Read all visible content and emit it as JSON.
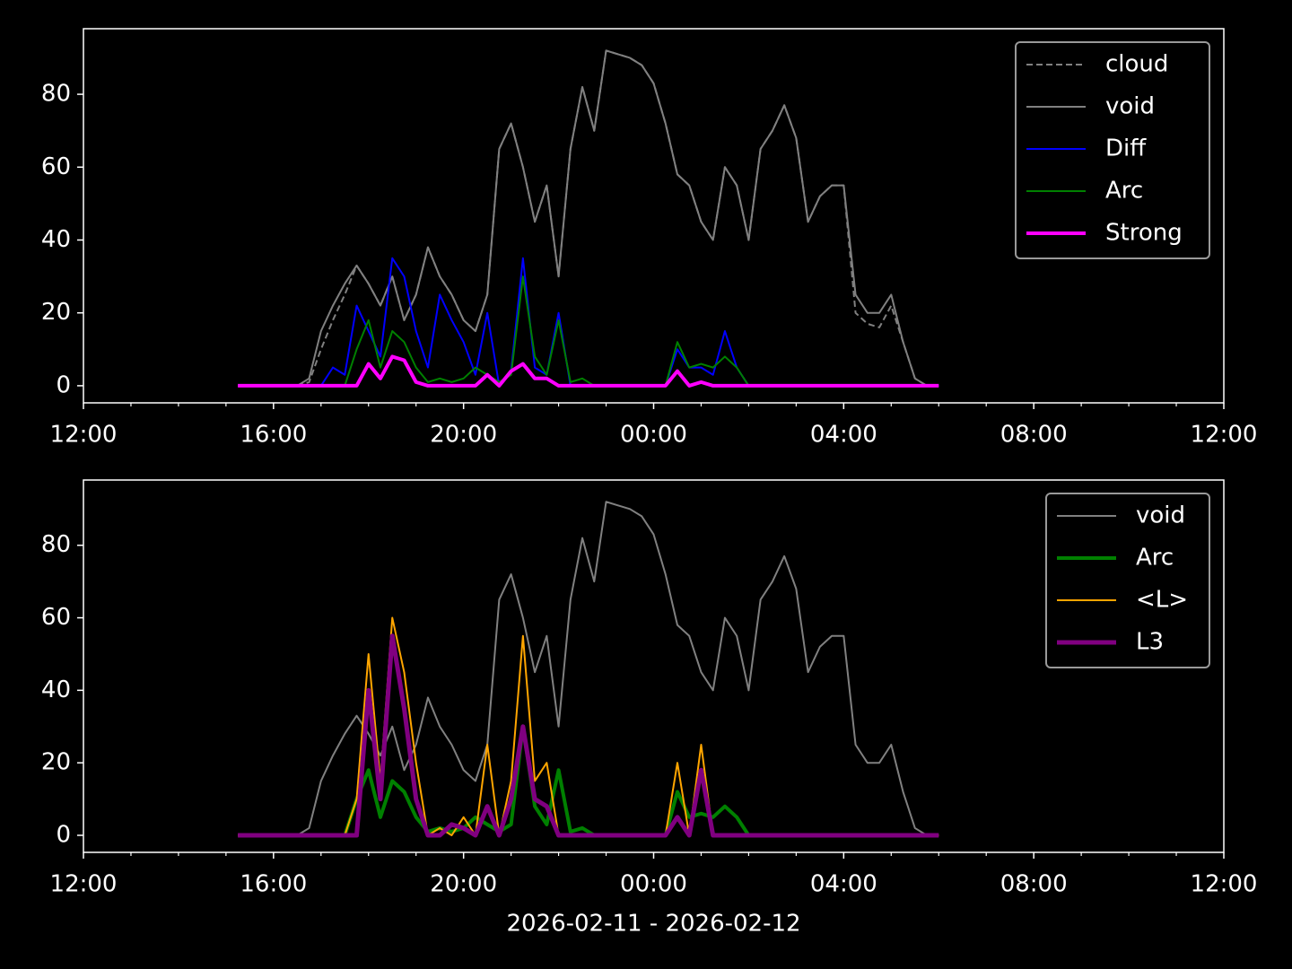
{
  "chart_data": [
    {
      "type": "line",
      "x": [
        15.25,
        15.5,
        15.75,
        16,
        16.25,
        16.5,
        16.75,
        17,
        17.25,
        17.5,
        17.75,
        18,
        18.25,
        18.5,
        18.75,
        19,
        19.25,
        19.5,
        19.75,
        20,
        20.25,
        20.5,
        20.75,
        21,
        21.25,
        21.5,
        21.75,
        22,
        22.25,
        22.5,
        22.75,
        23,
        23.25,
        23.5,
        23.75,
        24,
        24.25,
        24.5,
        24.75,
        25,
        25.25,
        25.5,
        25.75,
        26,
        26.25,
        26.5,
        26.75,
        27,
        27.25,
        27.5,
        27.75,
        28,
        28.25,
        28.5,
        28.75,
        29,
        29.25,
        29.5,
        29.75,
        30
      ],
      "xlim": [
        12,
        36
      ],
      "xticks": [
        {
          "value": 12,
          "label": "12:00"
        },
        {
          "value": 16,
          "label": "16:00"
        },
        {
          "value": 20,
          "label": "20:00"
        },
        {
          "value": 24,
          "label": "00:00"
        },
        {
          "value": 28,
          "label": "04:00"
        },
        {
          "value": 32,
          "label": "08:00"
        },
        {
          "value": 36,
          "label": "12:00"
        }
      ],
      "xminorticks": [
        13,
        14,
        15,
        17,
        18,
        19,
        21,
        22,
        23,
        25,
        26,
        27,
        29,
        30,
        31,
        33,
        34,
        35
      ],
      "ylim": [
        -4.7,
        98
      ],
      "yticks": [
        0,
        20,
        40,
        60,
        80
      ],
      "legend": "upper right",
      "series": [
        {
          "name": "cloud",
          "color": "#808080",
          "linestyle": "dashed",
          "linewidth": 2,
          "values": [
            0,
            0,
            0,
            0,
            0,
            0,
            1,
            10,
            18,
            25,
            33,
            28,
            22,
            30,
            18,
            25,
            38,
            30,
            25,
            18,
            15,
            25,
            65,
            72,
            60,
            45,
            55,
            30,
            65,
            82,
            70,
            92,
            91,
            90,
            88,
            83,
            72,
            58,
            55,
            45,
            40,
            60,
            55,
            40,
            65,
            70,
            77,
            68,
            45,
            52,
            55,
            55,
            20,
            17,
            16,
            22,
            12,
            2,
            0,
            0
          ]
        },
        {
          "name": "void",
          "color": "#808080",
          "linestyle": "solid",
          "linewidth": 2,
          "values": [
            0,
            0,
            0,
            0,
            0,
            0,
            2,
            15,
            22,
            28,
            33,
            28,
            22,
            30,
            18,
            25,
            38,
            30,
            25,
            18,
            15,
            25,
            65,
            72,
            60,
            45,
            55,
            30,
            65,
            82,
            70,
            92,
            91,
            90,
            88,
            83,
            72,
            58,
            55,
            45,
            40,
            60,
            55,
            40,
            65,
            70,
            77,
            68,
            45,
            52,
            55,
            55,
            25,
            20,
            20,
            25,
            12,
            2,
            0,
            0
          ]
        },
        {
          "name": "Diff",
          "color": "#0000ff",
          "linestyle": "solid",
          "linewidth": 2,
          "values": [
            0,
            0,
            0,
            0,
            0,
            0,
            0,
            0,
            5,
            3,
            22,
            15,
            8,
            35,
            30,
            15,
            5,
            25,
            18,
            12,
            3,
            20,
            0,
            4,
            35,
            5,
            3,
            20,
            0,
            0,
            0,
            0,
            0,
            0,
            0,
            0,
            0,
            10,
            5,
            5,
            3,
            15,
            5,
            0,
            0,
            0,
            0,
            0,
            0,
            0,
            0,
            0,
            0,
            0,
            0,
            0,
            0,
            0,
            0,
            0
          ]
        },
        {
          "name": "Arc",
          "color": "#008000",
          "linestyle": "solid",
          "linewidth": 2,
          "values": [
            0,
            0,
            0,
            0,
            0,
            0,
            0,
            0,
            0,
            0,
            10,
            18,
            5,
            15,
            12,
            5,
            1,
            2,
            1,
            2,
            5,
            3,
            1,
            3,
            30,
            8,
            3,
            18,
            1,
            2,
            0,
            0,
            0,
            0,
            0,
            0,
            0,
            12,
            5,
            6,
            5,
            8,
            5,
            0,
            0,
            0,
            0,
            0,
            0,
            0,
            0,
            0,
            0,
            0,
            0,
            0,
            0,
            0,
            0,
            0
          ]
        },
        {
          "name": "Strong",
          "color": "#ff00ff",
          "linestyle": "solid",
          "linewidth": 4,
          "values": [
            0,
            0,
            0,
            0,
            0,
            0,
            0,
            0,
            0,
            0,
            0,
            6,
            2,
            8,
            7,
            1,
            0,
            0,
            0,
            0,
            0,
            3,
            0,
            4,
            6,
            2,
            2,
            0,
            0,
            0,
            0,
            0,
            0,
            0,
            0,
            0,
            0,
            4,
            0,
            1,
            0,
            0,
            0,
            0,
            0,
            0,
            0,
            0,
            0,
            0,
            0,
            0,
            0,
            0,
            0,
            0,
            0,
            0,
            0,
            0
          ]
        }
      ]
    },
    {
      "type": "line",
      "x": [
        15.25,
        15.5,
        15.75,
        16,
        16.25,
        16.5,
        16.75,
        17,
        17.25,
        17.5,
        17.75,
        18,
        18.25,
        18.5,
        18.75,
        19,
        19.25,
        19.5,
        19.75,
        20,
        20.25,
        20.5,
        20.75,
        21,
        21.25,
        21.5,
        21.75,
        22,
        22.25,
        22.5,
        22.75,
        23,
        23.25,
        23.5,
        23.75,
        24,
        24.25,
        24.5,
        24.75,
        25,
        25.25,
        25.5,
        25.75,
        26,
        26.25,
        26.5,
        26.75,
        27,
        27.25,
        27.5,
        27.75,
        28,
        28.25,
        28.5,
        28.75,
        29,
        29.25,
        29.5,
        29.75,
        30
      ],
      "xlim": [
        12,
        36
      ],
      "xticks": [
        {
          "value": 12,
          "label": "12:00"
        },
        {
          "value": 16,
          "label": "16:00"
        },
        {
          "value": 20,
          "label": "20:00"
        },
        {
          "value": 24,
          "label": "00:00"
        },
        {
          "value": 28,
          "label": "04:00"
        },
        {
          "value": 32,
          "label": "08:00"
        },
        {
          "value": 36,
          "label": "12:00"
        }
      ],
      "xminorticks": [
        13,
        14,
        15,
        17,
        18,
        19,
        21,
        22,
        23,
        25,
        26,
        27,
        29,
        30,
        31,
        33,
        34,
        35
      ],
      "xlabel": "2026-02-11 - 2026-02-12",
      "ylim": [
        -4.7,
        98
      ],
      "yticks": [
        0,
        20,
        40,
        60,
        80
      ],
      "legend": "upper right",
      "series": [
        {
          "name": "void",
          "color": "#808080",
          "linestyle": "solid",
          "linewidth": 2,
          "values": [
            0,
            0,
            0,
            0,
            0,
            0,
            2,
            15,
            22,
            28,
            33,
            28,
            22,
            30,
            18,
            25,
            38,
            30,
            25,
            18,
            15,
            25,
            65,
            72,
            60,
            45,
            55,
            30,
            65,
            82,
            70,
            92,
            91,
            90,
            88,
            83,
            72,
            58,
            55,
            45,
            40,
            60,
            55,
            40,
            65,
            70,
            77,
            68,
            45,
            52,
            55,
            55,
            25,
            20,
            20,
            25,
            12,
            2,
            0,
            0
          ]
        },
        {
          "name": "Arc",
          "color": "#008000",
          "linestyle": "solid",
          "linewidth": 4,
          "values": [
            0,
            0,
            0,
            0,
            0,
            0,
            0,
            0,
            0,
            0,
            10,
            18,
            5,
            15,
            12,
            5,
            1,
            2,
            1,
            2,
            5,
            3,
            1,
            3,
            30,
            8,
            3,
            18,
            1,
            2,
            0,
            0,
            0,
            0,
            0,
            0,
            0,
            12,
            5,
            6,
            5,
            8,
            5,
            0,
            0,
            0,
            0,
            0,
            0,
            0,
            0,
            0,
            0,
            0,
            0,
            0,
            0,
            0,
            0,
            0
          ]
        },
        {
          "name": "<L>",
          "color": "#ffa500",
          "linestyle": "solid",
          "linewidth": 2,
          "values": [
            0,
            0,
            0,
            0,
            0,
            0,
            0,
            0,
            0,
            0,
            10,
            50,
            15,
            60,
            45,
            20,
            0,
            2,
            0,
            5,
            0,
            25,
            0,
            15,
            55,
            15,
            20,
            0,
            0,
            0,
            0,
            0,
            0,
            0,
            0,
            0,
            0,
            20,
            0,
            25,
            0,
            0,
            0,
            0,
            0,
            0,
            0,
            0,
            0,
            0,
            0,
            0,
            0,
            0,
            0,
            0,
            0,
            0,
            0,
            0
          ]
        },
        {
          "name": "L3",
          "color": "#800080",
          "linestyle": "solid",
          "linewidth": 5,
          "values": [
            0,
            0,
            0,
            0,
            0,
            0,
            0,
            0,
            0,
            0,
            0,
            40,
            10,
            55,
            35,
            10,
            0,
            0,
            3,
            2,
            0,
            8,
            0,
            10,
            30,
            10,
            8,
            0,
            0,
            0,
            0,
            0,
            0,
            0,
            0,
            0,
            0,
            5,
            0,
            18,
            0,
            0,
            0,
            0,
            0,
            0,
            0,
            0,
            0,
            0,
            0,
            0,
            0,
            0,
            0,
            0,
            0,
            0,
            0,
            0
          ]
        }
      ]
    }
  ]
}
